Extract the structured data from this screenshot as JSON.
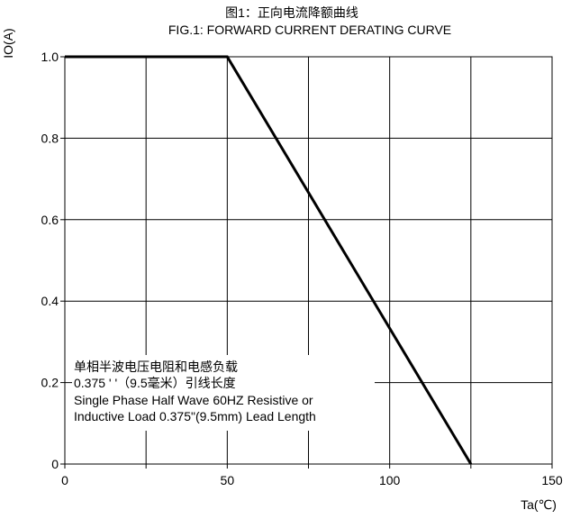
{
  "chart_data": {
    "type": "line",
    "title": "图1：正向电流降额曲线",
    "subtitle": "FIG.1: FORWARD CURRENT  DERATING CURVE",
    "xlabel": "Ta(℃)",
    "ylabel": "IO(A)",
    "xlim": [
      0,
      150
    ],
    "ylim": [
      0,
      1.0
    ],
    "x_ticks": [
      0,
      50,
      100,
      150
    ],
    "x_tick_labels": [
      "0",
      "50",
      "100",
      "150"
    ],
    "y_ticks": [
      0,
      0.2,
      0.4,
      0.6,
      0.8,
      1.0
    ],
    "y_tick_labels": [
      "0",
      "0.2",
      "0.4",
      "0.6",
      "0.8",
      "1.0"
    ],
    "x_grid": [
      0,
      25,
      50,
      75,
      100,
      125,
      150
    ],
    "y_grid": [
      0,
      0.2,
      0.4,
      0.6,
      0.8,
      1.0
    ],
    "grid": true,
    "series": [
      {
        "x": [
          0,
          50,
          125
        ],
        "y": [
          1.0,
          1.0,
          0
        ]
      }
    ],
    "annotation": [
      "单相半波电压电阻和电感负载",
      "0.375 ' '（9.5毫米）引线长度",
      "Single Phase Half Wave  60HZ Resistive or",
      "Inductive Load 0.375\"(9.5mm) Lead Length"
    ]
  }
}
